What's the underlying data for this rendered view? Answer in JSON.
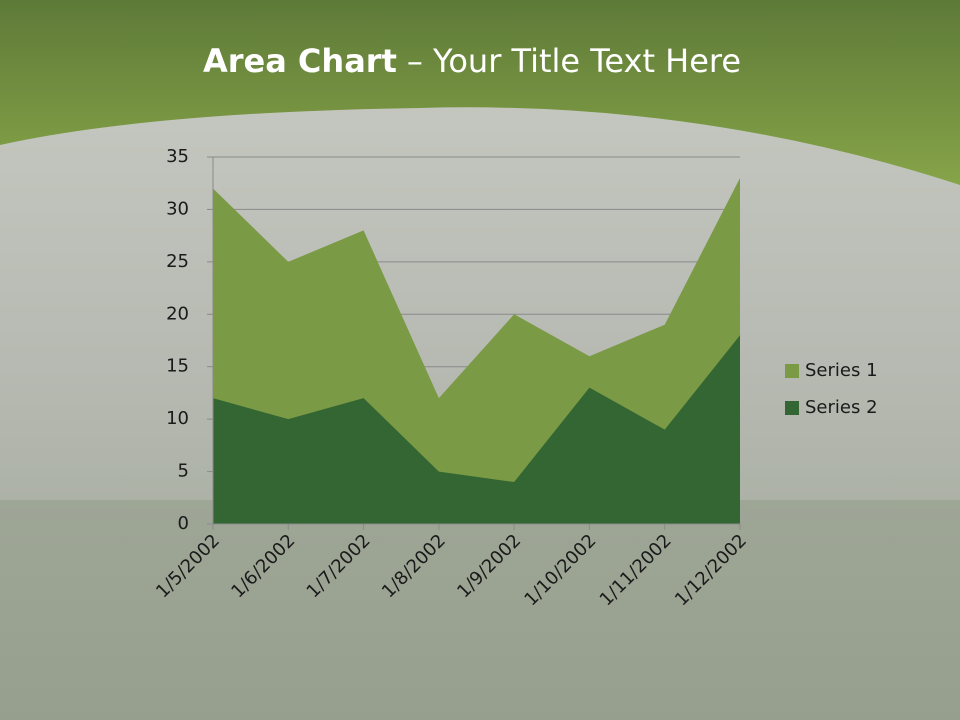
{
  "chart_data": {
    "type": "area",
    "title": {
      "bold": "Area Chart",
      "rest": "– Your Title Text Here"
    },
    "categories": [
      "1/5/2002",
      "1/6/2002",
      "1/7/2002",
      "1/8/2002",
      "1/9/2002",
      "1/10/2002",
      "1/11/2002",
      "1/12/2002"
    ],
    "series": [
      {
        "name": "Series 1",
        "color": "#7a9a45",
        "values": [
          32,
          25,
          28,
          12,
          20,
          16,
          19,
          33
        ]
      },
      {
        "name": "Series 2",
        "color": "#336633",
        "values": [
          12,
          10,
          12,
          5,
          4,
          13,
          9,
          18
        ]
      }
    ],
    "ylim": [
      0,
      35
    ],
    "yticks": [
      0,
      5,
      10,
      15,
      20,
      25,
      30,
      35
    ],
    "grid": true,
    "legend": "right"
  }
}
